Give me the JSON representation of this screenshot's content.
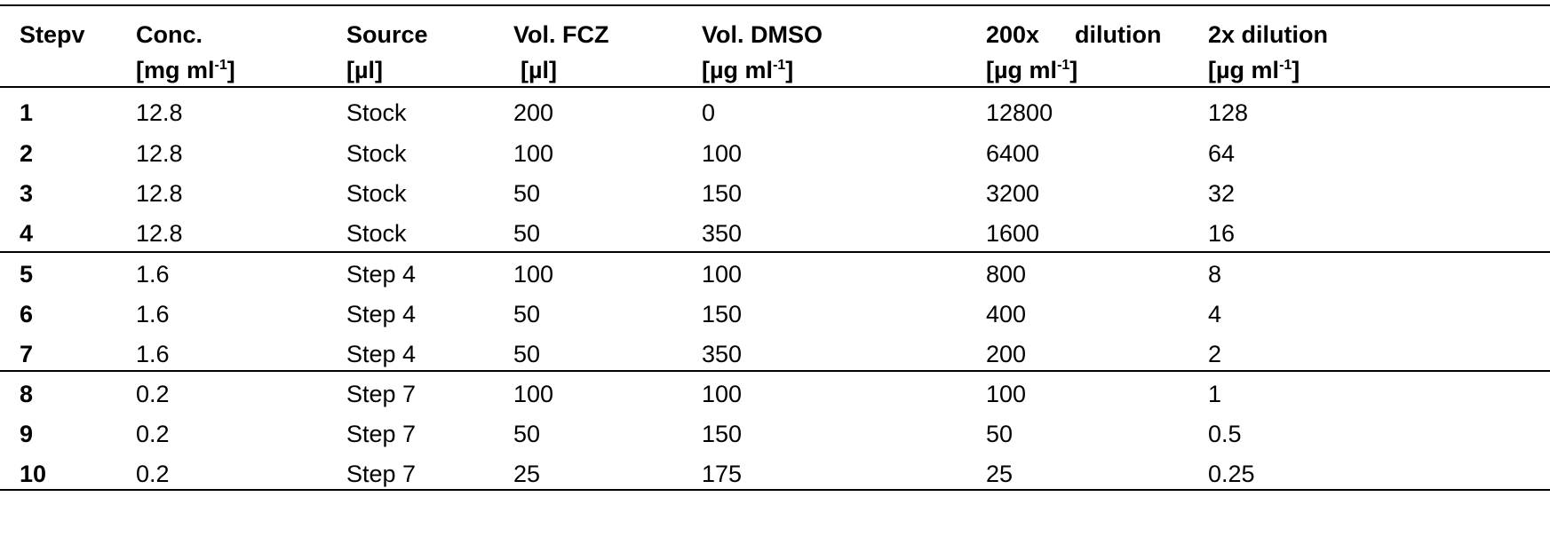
{
  "table": {
    "headers": [
      {
        "line1": "Stepv",
        "line2_pre": "",
        "line2_sup": "",
        "line2_post": ""
      },
      {
        "line1": "Conc.",
        "line2_pre": "[mg ml",
        "line2_sup": "-1",
        "line2_post": "]"
      },
      {
        "line1": "Source",
        "line2_pre": "[µl]",
        "line2_sup": "",
        "line2_post": ""
      },
      {
        "line1": "Vol. FCZ",
        "line2_pre": " [µl]",
        "line2_sup": "",
        "line2_post": ""
      },
      {
        "line1": "Vol. DMSO",
        "line2_pre": "[µg ml",
        "line2_sup": "-1",
        "line2_post": "]"
      },
      {
        "line1_a": "200x",
        "line1_b": "dilution",
        "line2_pre": "[µg ml",
        "line2_sup": "-1",
        "line2_post": "]"
      },
      {
        "line1": "2x dilution",
        "line2_pre": "[µg ml",
        "line2_sup": "-1",
        "line2_post": "]"
      }
    ],
    "rows": [
      [
        "1",
        "12.8",
        "Stock",
        "200",
        "0",
        "12800",
        "128"
      ],
      [
        "2",
        "12.8",
        "Stock",
        "100",
        "100",
        "6400",
        "64"
      ],
      [
        "3",
        "12.8",
        "Stock",
        "50",
        "150",
        "3200",
        "32"
      ],
      [
        "4",
        "12.8",
        "Stock",
        "50",
        "350",
        "1600",
        "16"
      ],
      [
        "5",
        "1.6",
        "Step 4",
        "100",
        "100",
        "800",
        "8"
      ],
      [
        "6",
        "1.6",
        "Step 4",
        "50",
        "150",
        "400",
        "4"
      ],
      [
        "7",
        "1.6",
        "Step 4",
        "50",
        "350",
        "200",
        "2"
      ],
      [
        "8",
        "0.2",
        "Step 7",
        "100",
        "100",
        "100",
        "1"
      ],
      [
        "9",
        "0.2",
        "Step 7",
        "50",
        "150",
        "50",
        "0.5"
      ],
      [
        "10",
        "0.2",
        "Step 7",
        "25",
        "175",
        "25",
        "0.25"
      ]
    ]
  }
}
